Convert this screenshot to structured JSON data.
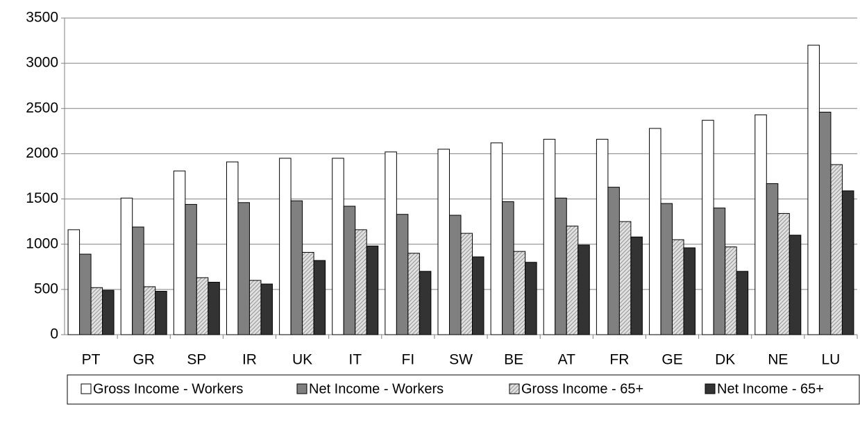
{
  "chart_data": {
    "type": "bar",
    "categories": [
      "PT",
      "GR",
      "SP",
      "IR",
      "UK",
      "IT",
      "FI",
      "SW",
      "BE",
      "AT",
      "FR",
      "GE",
      "DK",
      "NE",
      "LU"
    ],
    "series": [
      {
        "name": "Gross Income - Workers",
        "color": "#ffffff",
        "values": [
          1160,
          1510,
          1810,
          1910,
          1950,
          1950,
          2020,
          2050,
          2120,
          2160,
          2160,
          2280,
          2370,
          2430,
          3200
        ]
      },
      {
        "name": "Net Income - Workers",
        "color": "#808080",
        "values": [
          890,
          1190,
          1440,
          1460,
          1480,
          1420,
          1330,
          1320,
          1470,
          1510,
          1630,
          1450,
          1400,
          1670,
          2460
        ]
      },
      {
        "name": "Gross Income - 65+",
        "color": "#c8c8c8",
        "hatch": true,
        "values": [
          520,
          530,
          630,
          600,
          910,
          1160,
          900,
          1120,
          920,
          1200,
          1250,
          1050,
          970,
          1340,
          1880
        ]
      },
      {
        "name": "Net Income - 65+",
        "color": "#333333",
        "values": [
          490,
          480,
          580,
          560,
          820,
          980,
          700,
          860,
          800,
          990,
          1080,
          960,
          700,
          1100,
          1590
        ]
      }
    ],
    "ylim": [
      0,
      3500
    ],
    "yticks": [
      0,
      500,
      1000,
      1500,
      2000,
      2500,
      3000,
      3500
    ],
    "grid": true,
    "legend": "bottom"
  }
}
